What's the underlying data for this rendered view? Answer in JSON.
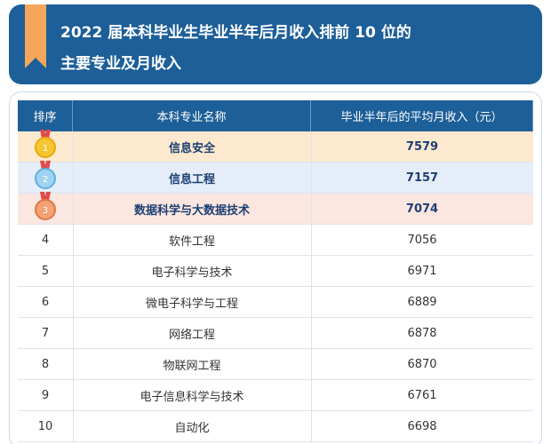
{
  "header": {
    "title_lines": [
      "2022 届本科毕业生毕业半年后月收入排前 10 位的",
      "主要专业及月收入"
    ]
  },
  "table": {
    "columns": [
      "排序",
      "本科专业名称",
      "毕业半年后的平均月收入（元）"
    ],
    "rows": [
      [
        "1",
        "信息安全",
        "7579"
      ],
      [
        "2",
        "信息工程",
        "7157"
      ],
      [
        "3",
        "数据科学与大数据技术",
        "7074"
      ],
      [
        "4",
        "软件工程",
        "7056"
      ],
      [
        "5",
        "电子科学与技术",
        "6971"
      ],
      [
        "6",
        "微电子科学与工程",
        "6889"
      ],
      [
        "7",
        "网络工程",
        "6878"
      ],
      [
        "8",
        "物联网工程",
        "6870"
      ],
      [
        "9",
        "电子信息科学与技术",
        "6761"
      ],
      [
        "10",
        "自动化",
        "6698"
      ]
    ]
  }
}
